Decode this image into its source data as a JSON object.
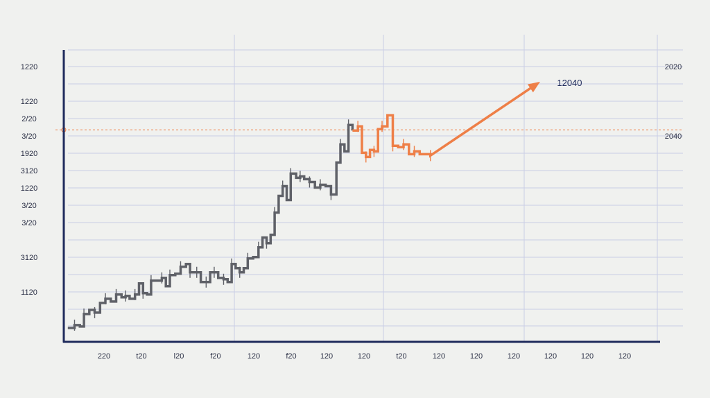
{
  "colors": {
    "background": "#f0f1ef",
    "grid": "#c9cde6",
    "axis": "#1f2b5c",
    "history_series": "#5f6168",
    "projection_series": "#ee7f47",
    "reference_line": "#ee7f47",
    "text": "#2a2f45"
  },
  "chart_data": {
    "type": "line",
    "title": "",
    "xlabel": "",
    "ylabel": "",
    "grid": true,
    "legend": "none",
    "y_tick_labels_left": [
      "1220",
      "1220",
      "2/20",
      "3/20",
      "1920",
      "3120",
      "1220",
      "3/20",
      "3/20",
      "3120",
      "1120"
    ],
    "y_tick_labels_right": [
      "2020",
      "2040"
    ],
    "x_tick_labels": [
      "220",
      "t20",
      "l20",
      "f20",
      "120",
      "f20",
      "120",
      "120",
      "t20",
      "120",
      "120",
      "120",
      "120",
      "120",
      "120"
    ],
    "series": [
      {
        "values": [
          [
            0.0,
            1.0
          ],
          [
            0.5,
            1.2
          ],
          [
            0.9,
            1.1
          ],
          [
            1.2,
            2.0
          ],
          [
            1.6,
            2.3
          ],
          [
            2.0,
            2.1
          ],
          [
            2.4,
            2.8
          ],
          [
            2.8,
            3.1
          ],
          [
            3.2,
            2.9
          ],
          [
            3.6,
            3.4
          ],
          [
            4.0,
            3.2
          ],
          [
            4.3,
            3.3
          ],
          [
            4.6,
            3.1
          ],
          [
            5.0,
            3.4
          ],
          [
            5.3,
            4.2
          ],
          [
            5.6,
            3.5
          ],
          [
            5.9,
            3.4
          ],
          [
            6.2,
            4.4
          ],
          [
            6.6,
            4.4
          ],
          [
            7.0,
            4.6
          ],
          [
            7.3,
            4.0
          ],
          [
            7.6,
            4.8
          ],
          [
            8.0,
            4.9
          ],
          [
            8.4,
            5.4
          ],
          [
            8.8,
            5.6
          ],
          [
            9.1,
            5.0
          ],
          [
            9.3,
            5.0
          ],
          [
            9.6,
            5.0
          ],
          [
            9.9,
            4.3
          ],
          [
            10.3,
            4.3
          ],
          [
            10.6,
            5.0
          ],
          [
            10.9,
            5.0
          ],
          [
            11.2,
            4.6
          ],
          [
            11.6,
            4.5
          ],
          [
            11.9,
            4.3
          ],
          [
            12.2,
            5.6
          ],
          [
            12.5,
            5.3
          ],
          [
            12.8,
            5.0
          ],
          [
            13.1,
            5.3
          ],
          [
            13.4,
            6.0
          ],
          [
            13.8,
            6.1
          ],
          [
            14.2,
            6.8
          ],
          [
            14.5,
            7.5
          ],
          [
            14.8,
            7.1
          ],
          [
            15.1,
            7.7
          ],
          [
            15.4,
            9.3
          ],
          [
            15.7,
            10.5
          ],
          [
            16.0,
            11.2
          ],
          [
            16.3,
            10.2
          ],
          [
            16.6,
            12.1
          ],
          [
            17.0,
            11.8
          ],
          [
            17.3,
            11.9
          ],
          [
            17.6,
            11.7
          ],
          [
            18.0,
            11.5
          ],
          [
            18.4,
            11.1
          ],
          [
            18.8,
            11.3
          ],
          [
            19.2,
            11.2
          ],
          [
            19.6,
            10.6
          ],
          [
            20.0,
            12.9
          ],
          [
            20.3,
            14.2
          ],
          [
            20.6,
            13.7
          ],
          [
            20.9,
            15.6
          ],
          [
            21.2,
            15.2
          ]
        ]
      },
      {
        "values": [
          [
            21.2,
            15.2
          ],
          [
            21.6,
            15.5
          ],
          [
            21.9,
            13.6
          ],
          [
            22.2,
            13.3
          ],
          [
            22.5,
            13.8
          ],
          [
            22.8,
            13.7
          ],
          [
            23.1,
            15.3
          ],
          [
            23.4,
            15.5
          ],
          [
            23.8,
            16.3
          ],
          [
            24.2,
            14.1
          ],
          [
            24.6,
            14.0
          ],
          [
            25.0,
            14.2
          ],
          [
            25.4,
            13.5
          ],
          [
            25.8,
            13.7
          ],
          [
            26.2,
            13.5
          ],
          [
            27.0,
            13.4
          ],
          [
            35.0,
            18.6
          ]
        ]
      }
    ],
    "reference_lines": [
      {
        "y": 15.25,
        "style": "dashed"
      }
    ],
    "annotations": [
      {
        "text": "12040",
        "x": 35.5,
        "y": 18.6
      }
    ],
    "xlim": [
      -0.3,
      44
    ],
    "ylim": [
      0,
      21
    ]
  }
}
